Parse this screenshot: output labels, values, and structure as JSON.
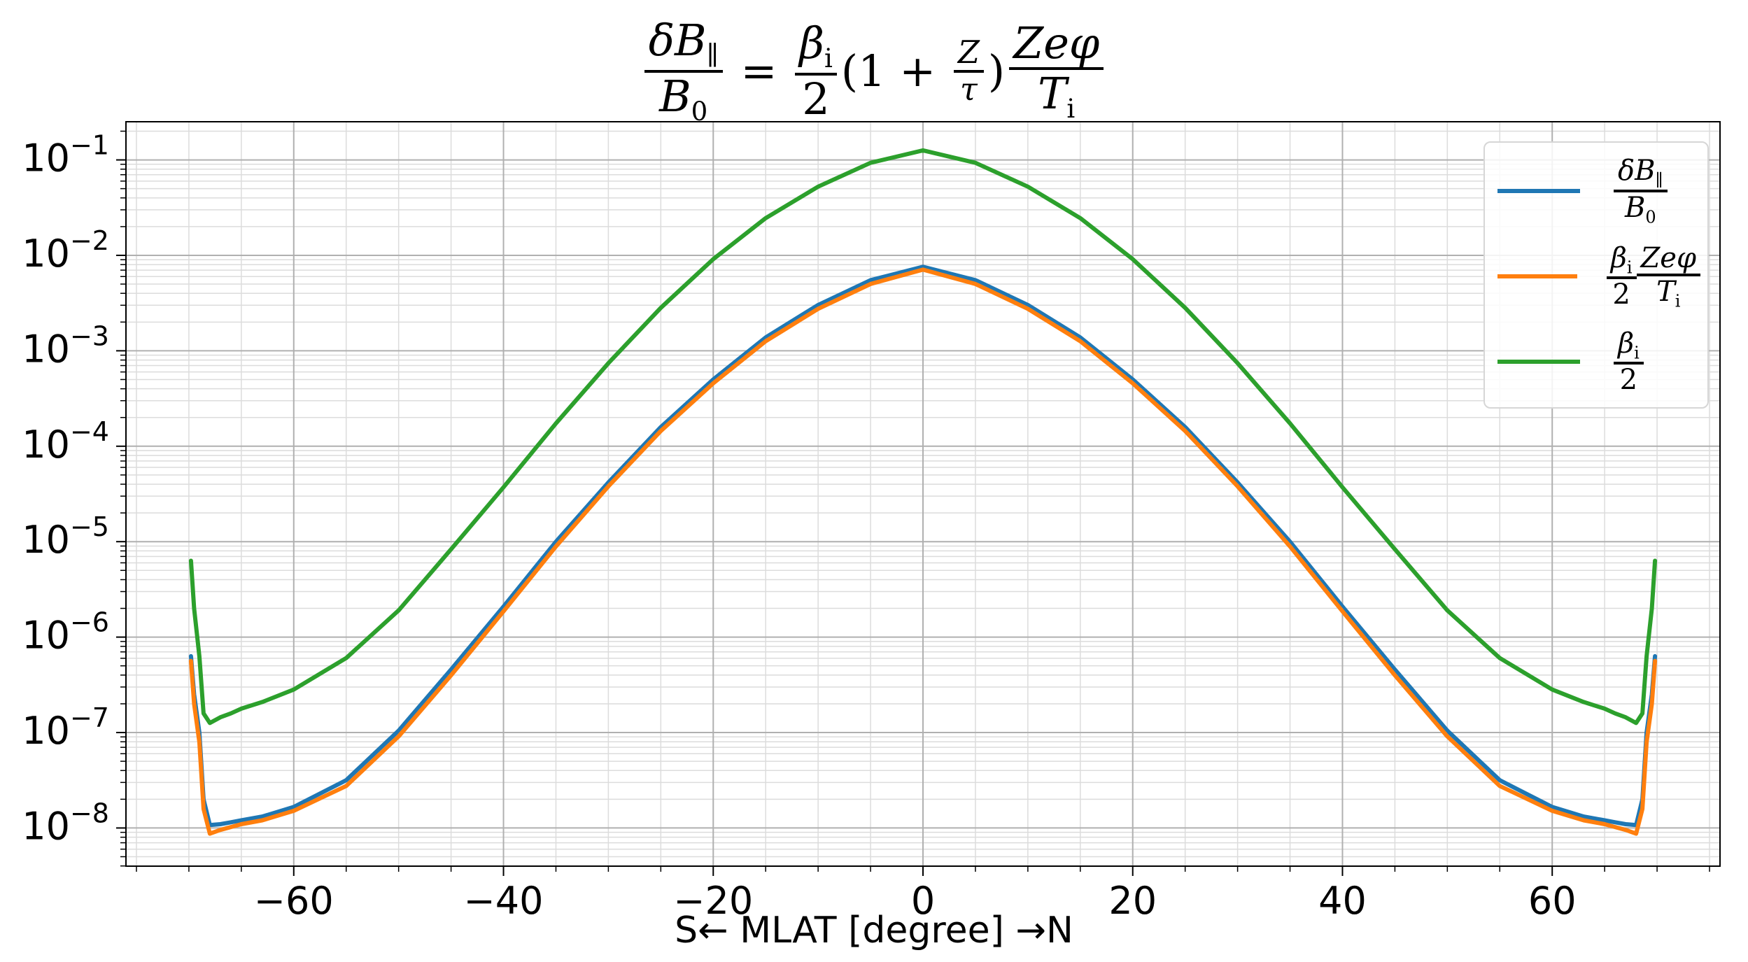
{
  "chart_data": {
    "type": "line",
    "title": "δB∥/B0 = βi/2 (1 + Z/τ) Zeφ/Ti",
    "xlabel": "S← MLAT [degree] →N",
    "ylabel": "",
    "xlim": [
      -76,
      76
    ],
    "ylim_log10": [
      -8.4,
      -0.6
    ],
    "yscale": "log",
    "grid": true,
    "legend_position": "top-right",
    "x_ticks": [
      -60,
      -40,
      -20,
      0,
      20,
      40,
      60
    ],
    "x_tick_labels": [
      "−60",
      "−40",
      "−20",
      "0",
      "20",
      "40",
      "60"
    ],
    "y_ticks_log10": [
      -8,
      -7,
      -6,
      -5,
      -4,
      -3,
      -2,
      -1
    ],
    "y_tick_labels": [
      "10−8",
      "10−7",
      "10−6",
      "10−5",
      "10−4",
      "10−3",
      "10−2",
      "10−1"
    ],
    "x": [
      0,
      5,
      10,
      15,
      20,
      25,
      30,
      35,
      40,
      45,
      50,
      55,
      60,
      63,
      65,
      66,
      67,
      68,
      68.6,
      69,
      69.5,
      69.8
    ],
    "series": [
      {
        "name": "δB∥/B0",
        "color": "#1f77b4",
        "log10_values": [
          -2.12,
          -2.26,
          -2.52,
          -2.86,
          -3.3,
          -3.8,
          -4.38,
          -5.0,
          -5.68,
          -6.34,
          -6.98,
          -7.5,
          -7.78,
          -7.88,
          -7.92,
          -7.94,
          -7.96,
          -7.97,
          -7.7,
          -7.0,
          -6.6,
          -6.2
        ]
      },
      {
        "name": "βi/2 Zeφ/Ti",
        "color": "#ff7f0e",
        "log10_values": [
          -2.15,
          -2.3,
          -2.56,
          -2.9,
          -3.34,
          -3.84,
          -4.42,
          -5.05,
          -5.73,
          -6.4,
          -7.04,
          -7.56,
          -7.82,
          -7.92,
          -7.96,
          -7.99,
          -8.02,
          -8.06,
          -7.8,
          -7.1,
          -6.7,
          -6.25
        ]
      },
      {
        "name": "βi/2",
        "color": "#2ca02c",
        "log10_values": [
          -0.9,
          -1.03,
          -1.28,
          -1.61,
          -2.04,
          -2.55,
          -3.13,
          -3.76,
          -4.43,
          -5.08,
          -5.72,
          -6.22,
          -6.55,
          -6.68,
          -6.75,
          -6.8,
          -6.84,
          -6.9,
          -6.8,
          -6.2,
          -5.7,
          -5.2
        ]
      }
    ]
  },
  "legend": {
    "items": [
      {
        "label": "δB∥/B0"
      },
      {
        "label": "βi/2 Zeφ/Ti"
      },
      {
        "label": "βi/2"
      }
    ]
  }
}
